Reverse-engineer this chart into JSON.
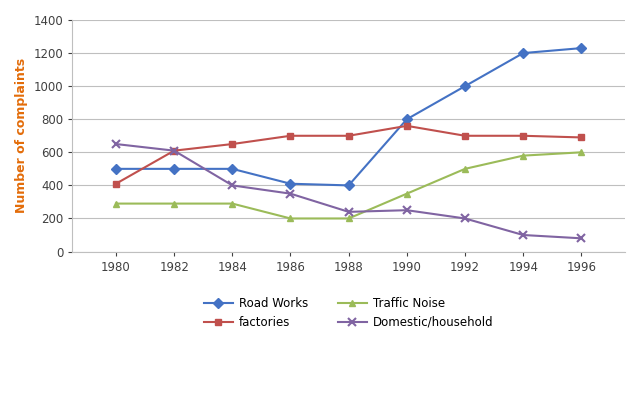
{
  "years": [
    1980,
    1982,
    1984,
    1986,
    1988,
    1990,
    1992,
    1994,
    1996
  ],
  "road_works": [
    500,
    500,
    500,
    410,
    400,
    800,
    1000,
    1200,
    1230
  ],
  "factories": [
    410,
    610,
    650,
    700,
    700,
    760,
    700,
    700,
    690
  ],
  "traffic_noise": [
    290,
    290,
    290,
    200,
    200,
    350,
    500,
    580,
    600
  ],
  "domestic_household": [
    650,
    610,
    400,
    350,
    240,
    250,
    200,
    100,
    80
  ],
  "road_works_color": "#4472C4",
  "factories_color": "#C0504D",
  "traffic_noise_color": "#9BBB59",
  "domestic_color": "#8064A2",
  "ylabel": "Number of complaints",
  "ylabel_color": "#E36C09",
  "ylim": [
    0,
    1400
  ],
  "yticks": [
    0,
    200,
    400,
    600,
    800,
    1000,
    1200,
    1400
  ],
  "xlim": [
    1978.5,
    1997.5
  ],
  "xticks": [
    1980,
    1982,
    1984,
    1986,
    1988,
    1990,
    1992,
    1994,
    1996
  ],
  "legend_road_works": "Road Works",
  "legend_factories": "factories",
  "legend_traffic": "Traffic Noise",
  "legend_domestic": "Domestic/household",
  "background_color": "#ffffff",
  "grid_color": "#bfbfbf",
  "spine_color": "#bfbfbf",
  "marker_road_works": "D",
  "marker_factories": "s",
  "marker_traffic": "^",
  "marker_domestic": "x",
  "linewidth": 1.5,
  "markersize": 5
}
